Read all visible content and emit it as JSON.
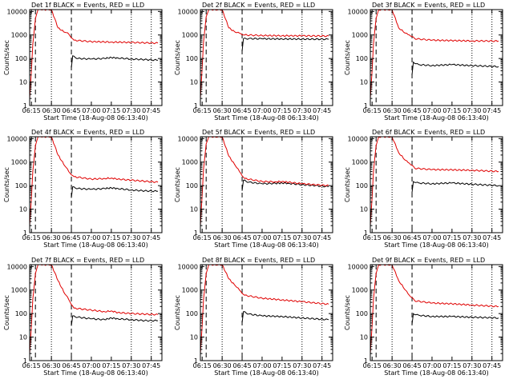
{
  "panel_titles": [
    "Det 1f BLACK = Events, RED = LLD",
    "Det 2f BLACK = Events, RED = LLD",
    "Det 3f BLACK = Events, RED = LLD",
    "Det 4f BLACK = Events, RED = LLD",
    "Det 5f BLACK = Events, RED = LLD",
    "Det 6f BLACK = Events, RED = LLD",
    "Det 7f BLACK = Events, RED = LLD",
    "Det 8f BLACK = Events, RED = LLD",
    "Det 9f BLACK = Events, RED = LLD"
  ],
  "xlabel": "Start Time (18-Aug-08 06:13:40)",
  "ylabel": "Counts/sec",
  "colors": {
    "events": "#000000",
    "lld": "#e00000",
    "axis": "#000000"
  },
  "chart_data": [
    {
      "type": "line",
      "title": "Det 1f BLACK = Events, RED = LLD",
      "xlabel": "Start Time (18-Aug-08 06:13:40)",
      "ylabel": "Counts/sec",
      "x_ticks": [
        "06:15",
        "06:30",
        "06:45",
        "07:00",
        "07:15",
        "07:30",
        "07:45"
      ],
      "y_ticks": [
        "1",
        "10",
        "100",
        "1000",
        "10000"
      ],
      "xlim": [
        "06:13:40",
        "07:53:00"
      ],
      "ylim": [
        1,
        12000
      ],
      "y_scale": "log",
      "dotted_lines": [
        "06:30",
        "07:30",
        "07:45"
      ],
      "dashed_lines": [
        "06:18",
        "06:45"
      ],
      "series": [
        {
          "name": "BLACK = Events",
          "color": "#000000",
          "x": [
            "06:45",
            "06:46",
            "06:50",
            "07:00",
            "07:10",
            "07:15",
            "07:20",
            "07:30",
            "07:40",
            "07:50"
          ],
          "y": [
            40,
            130,
            100,
            95,
            100,
            110,
            105,
            95,
            90,
            85
          ]
        },
        {
          "name": "RED = LLD",
          "color": "#e00000",
          "x": [
            "06:13:40",
            "06:15",
            "06:16",
            "06:18",
            "06:20",
            "06:22",
            "06:30",
            "06:35",
            "06:40",
            "06:43",
            "06:47",
            "07:00",
            "07:15",
            "07:30",
            "07:50"
          ],
          "y": [
            2,
            30,
            400,
            5000,
            12000,
            12000,
            12000,
            2000,
            1300,
            1100,
            600,
            520,
            500,
            480,
            450
          ]
        }
      ]
    },
    {
      "type": "line",
      "title": "Det 2f BLACK = Events, RED = LLD",
      "xlabel": "Start Time (18-Aug-08 06:13:40)",
      "ylabel": "Counts/sec",
      "x_ticks": [
        "06:15",
        "06:30",
        "06:45",
        "07:00",
        "07:15",
        "07:30",
        "07:45"
      ],
      "y_ticks": [
        "1",
        "10",
        "100",
        "1000",
        "10000"
      ],
      "xlim": [
        "06:13:40",
        "07:53:00"
      ],
      "ylim": [
        1,
        12000
      ],
      "y_scale": "log",
      "dotted_lines": [
        "06:30",
        "07:30",
        "07:45"
      ],
      "dashed_lines": [
        "06:18",
        "06:45"
      ],
      "series": [
        {
          "name": "BLACK = Events",
          "color": "#000000",
          "x": [
            "06:45",
            "06:46",
            "06:50",
            "07:00",
            "07:15",
            "07:30",
            "07:50"
          ],
          "y": [
            200,
            700,
            700,
            690,
            680,
            670,
            660
          ]
        },
        {
          "name": "RED = LLD",
          "color": "#e00000",
          "x": [
            "06:13:40",
            "06:15",
            "06:16",
            "06:18",
            "06:20",
            "06:22",
            "06:30",
            "06:35",
            "06:40",
            "06:43",
            "06:47",
            "07:00",
            "07:15",
            "07:30",
            "07:50"
          ],
          "y": [
            2,
            40,
            500,
            6000,
            12000,
            12000,
            12000,
            2000,
            1300,
            1200,
            1000,
            950,
            930,
            920,
            900
          ]
        }
      ]
    },
    {
      "type": "line",
      "title": "Det 3f BLACK = Events, RED = LLD",
      "xlabel": "Start Time (18-Aug-08 06:13:40)",
      "ylabel": "Counts/sec",
      "x_ticks": [
        "06:15",
        "06:30",
        "06:45",
        "07:00",
        "07:15",
        "07:30",
        "07:45"
      ],
      "y_ticks": [
        "1",
        "10",
        "100",
        "1000",
        "10000"
      ],
      "xlim": [
        "06:13:40",
        "07:53:00"
      ],
      "ylim": [
        1,
        12000
      ],
      "y_scale": "log",
      "dotted_lines": [
        "06:30",
        "07:30",
        "07:45"
      ],
      "dashed_lines": [
        "06:18",
        "06:45"
      ],
      "series": [
        {
          "name": "BLACK = Events",
          "color": "#000000",
          "x": [
            "06:45",
            "06:46",
            "06:50",
            "07:00",
            "07:15",
            "07:30",
            "07:50"
          ],
          "y": [
            20,
            70,
            55,
            50,
            55,
            50,
            45
          ]
        },
        {
          "name": "RED = LLD",
          "color": "#e00000",
          "x": [
            "06:13:40",
            "06:15",
            "06:16",
            "06:18",
            "06:20",
            "06:22",
            "06:30",
            "06:35",
            "06:40",
            "06:43",
            "06:47",
            "07:00",
            "07:15",
            "07:30",
            "07:50"
          ],
          "y": [
            2,
            30,
            400,
            5000,
            12000,
            12000,
            12000,
            2000,
            1200,
            1000,
            700,
            600,
            580,
            560,
            550
          ]
        }
      ]
    },
    {
      "type": "line",
      "title": "Det 4f BLACK = Events, RED = LLD",
      "xlabel": "Start Time (18-Aug-08 06:13:40)",
      "ylabel": "Counts/sec",
      "x_ticks": [
        "06:15",
        "06:30",
        "06:45",
        "07:00",
        "07:15",
        "07:30",
        "07:45"
      ],
      "y_ticks": [
        "1",
        "10",
        "100",
        "1000",
        "10000"
      ],
      "xlim": [
        "06:13:40",
        "07:53:00"
      ],
      "ylim": [
        1,
        12000
      ],
      "y_scale": "log",
      "dotted_lines": [
        "06:30",
        "07:30",
        "07:45"
      ],
      "dashed_lines": [
        "06:18",
        "06:45"
      ],
      "series": [
        {
          "name": "BLACK = Events",
          "color": "#000000",
          "x": [
            "06:45",
            "06:46",
            "06:50",
            "07:00",
            "07:10",
            "07:15",
            "07:20",
            "07:30",
            "07:40",
            "07:50"
          ],
          "y": [
            30,
            90,
            75,
            70,
            75,
            80,
            75,
            65,
            60,
            58
          ]
        },
        {
          "name": "RED = LLD",
          "color": "#e00000",
          "x": [
            "06:13:40",
            "06:15",
            "06:16",
            "06:18",
            "06:20",
            "06:22",
            "06:30",
            "06:35",
            "06:40",
            "06:43",
            "06:47",
            "07:00",
            "07:10",
            "07:15",
            "07:20",
            "07:30",
            "07:50"
          ],
          "y": [
            2,
            30,
            400,
            5000,
            12000,
            12000,
            12000,
            2000,
            700,
            400,
            240,
            190,
            200,
            210,
            190,
            170,
            140
          ]
        }
      ]
    },
    {
      "type": "line",
      "title": "Det 5f BLACK = Events, RED = LLD",
      "xlabel": "Start Time (18-Aug-08 06:13:40)",
      "ylabel": "Counts/sec",
      "x_ticks": [
        "06:15",
        "06:30",
        "06:45",
        "07:00",
        "07:15",
        "07:30",
        "07:45"
      ],
      "y_ticks": [
        "1",
        "10",
        "100",
        "1000",
        "10000"
      ],
      "xlim": [
        "06:13:40",
        "07:53:00"
      ],
      "ylim": [
        1,
        12000
      ],
      "y_scale": "log",
      "dotted_lines": [
        "06:30",
        "07:30",
        "07:45"
      ],
      "dashed_lines": [
        "06:18",
        "06:45"
      ],
      "series": [
        {
          "name": "BLACK = Events",
          "color": "#000000",
          "x": [
            "06:45",
            "06:46",
            "06:50",
            "07:00",
            "07:10",
            "07:15",
            "07:20",
            "07:30",
            "07:40",
            "07:50"
          ],
          "y": [
            60,
            170,
            140,
            120,
            125,
            130,
            125,
            110,
            100,
            90
          ]
        },
        {
          "name": "RED = LLD",
          "color": "#e00000",
          "x": [
            "06:13:40",
            "06:15",
            "06:16",
            "06:18",
            "06:20",
            "06:22",
            "06:30",
            "06:35",
            "06:40",
            "06:43",
            "06:47",
            "07:00",
            "07:10",
            "07:15",
            "07:20",
            "07:30",
            "07:50"
          ],
          "y": [
            2,
            40,
            500,
            6000,
            12000,
            12000,
            12000,
            1800,
            700,
            400,
            200,
            150,
            145,
            150,
            140,
            120,
            100
          ]
        }
      ]
    },
    {
      "type": "line",
      "title": "Det 6f BLACK = Events, RED = LLD",
      "xlabel": "Start Time (18-Aug-08 06:13:40)",
      "ylabel": "Counts/sec",
      "x_ticks": [
        "06:15",
        "06:30",
        "06:45",
        "07:00",
        "07:15",
        "07:30",
        "07:45"
      ],
      "y_ticks": [
        "1",
        "10",
        "100",
        "1000",
        "10000"
      ],
      "xlim": [
        "06:13:40",
        "07:53:00"
      ],
      "ylim": [
        1,
        12000
      ],
      "y_scale": "log",
      "dotted_lines": [
        "06:30",
        "07:30",
        "07:45"
      ],
      "dashed_lines": [
        "06:18",
        "06:45"
      ],
      "series": [
        {
          "name": "BLACK = Events",
          "color": "#000000",
          "x": [
            "06:45",
            "06:46",
            "06:50",
            "07:00",
            "07:15",
            "07:30",
            "07:50"
          ],
          "y": [
            50,
            150,
            130,
            120,
            130,
            115,
            100
          ]
        },
        {
          "name": "RED = LLD",
          "color": "#e00000",
          "x": [
            "06:13:40",
            "06:15",
            "06:16",
            "06:18",
            "06:20",
            "06:22",
            "06:30",
            "06:35",
            "06:40",
            "06:43",
            "06:47",
            "07:00",
            "07:15",
            "07:30",
            "07:50"
          ],
          "y": [
            2,
            30,
            400,
            5000,
            12000,
            12000,
            12000,
            2500,
            1200,
            900,
            550,
            480,
            470,
            450,
            400
          ]
        }
      ]
    },
    {
      "type": "line",
      "title": "Det 7f BLACK = Events, RED = LLD",
      "xlabel": "Start Time (18-Aug-08 06:13:40)",
      "ylabel": "Counts/sec",
      "x_ticks": [
        "06:15",
        "06:30",
        "06:45",
        "07:00",
        "07:15",
        "07:30",
        "07:45"
      ],
      "y_ticks": [
        "1",
        "10",
        "100",
        "1000",
        "10000"
      ],
      "xlim": [
        "06:13:40",
        "07:53:00"
      ],
      "ylim": [
        1,
        12000
      ],
      "y_scale": "log",
      "dotted_lines": [
        "06:30",
        "07:30",
        "07:45"
      ],
      "dashed_lines": [
        "06:18",
        "06:45"
      ],
      "series": [
        {
          "name": "BLACK = Events",
          "color": "#000000",
          "x": [
            "06:45",
            "06:46",
            "06:50",
            "07:00",
            "07:10",
            "07:15",
            "07:20",
            "07:30",
            "07:40",
            "07:50"
          ],
          "y": [
            30,
            80,
            70,
            60,
            55,
            65,
            60,
            55,
            50,
            50
          ]
        },
        {
          "name": "RED = LLD",
          "color": "#e00000",
          "x": [
            "06:13:40",
            "06:15",
            "06:16",
            "06:18",
            "06:20",
            "06:22",
            "06:30",
            "06:35",
            "06:40",
            "06:43",
            "06:47",
            "07:00",
            "07:10",
            "07:15",
            "07:20",
            "07:30",
            "07:50"
          ],
          "y": [
            2,
            30,
            400,
            5000,
            12000,
            12000,
            12000,
            2500,
            700,
            400,
            170,
            140,
            120,
            130,
            110,
            100,
            90
          ]
        }
      ]
    },
    {
      "type": "line",
      "title": "Det 8f BLACK = Events, RED = LLD",
      "xlabel": "Start Time (18-Aug-08 06:13:40)",
      "ylabel": "Counts/sec",
      "x_ticks": [
        "06:15",
        "06:30",
        "06:45",
        "07:00",
        "07:15",
        "07:30",
        "07:45"
      ],
      "y_ticks": [
        "1",
        "10",
        "100",
        "1000",
        "10000"
      ],
      "xlim": [
        "06:13:40",
        "07:53:00"
      ],
      "ylim": [
        1,
        12000
      ],
      "y_scale": "log",
      "dotted_lines": [
        "06:30",
        "07:30",
        "07:45"
      ],
      "dashed_lines": [
        "06:18",
        "06:45"
      ],
      "series": [
        {
          "name": "BLACK = Events",
          "color": "#000000",
          "x": [
            "06:45",
            "06:46",
            "06:50",
            "07:00",
            "07:15",
            "07:30",
            "07:50"
          ],
          "y": [
            40,
            120,
            95,
            80,
            75,
            65,
            55
          ]
        },
        {
          "name": "RED = LLD",
          "color": "#e00000",
          "x": [
            "06:13:40",
            "06:15",
            "06:16",
            "06:18",
            "06:20",
            "06:22",
            "06:30",
            "06:35",
            "06:40",
            "06:43",
            "06:47",
            "07:00",
            "07:15",
            "07:30",
            "07:50"
          ],
          "y": [
            2,
            30,
            400,
            5000,
            12000,
            12000,
            12000,
            3000,
            1500,
            1000,
            600,
            450,
            380,
            320,
            250
          ]
        }
      ]
    },
    {
      "type": "line",
      "title": "Det 9f BLACK = Events, RED = LLD",
      "xlabel": "Start Time (18-Aug-08 06:13:40)",
      "ylabel": "Counts/sec",
      "x_ticks": [
        "06:15",
        "06:30",
        "06:45",
        "07:00",
        "07:15",
        "07:30",
        "07:45"
      ],
      "y_ticks": [
        "1",
        "10",
        "100",
        "1000",
        "10000"
      ],
      "xlim": [
        "06:13:40",
        "07:53:00"
      ],
      "ylim": [
        1,
        12000
      ],
      "y_scale": "log",
      "dotted_lines": [
        "06:30",
        "07:30",
        "07:45"
      ],
      "dashed_lines": [
        "06:18",
        "06:45"
      ],
      "series": [
        {
          "name": "BLACK = Events",
          "color": "#000000",
          "x": [
            "06:45",
            "06:46",
            "06:50",
            "07:00",
            "07:15",
            "07:30",
            "07:50"
          ],
          "y": [
            35,
            100,
            85,
            75,
            75,
            70,
            65
          ]
        },
        {
          "name": "RED = LLD",
          "color": "#e00000",
          "x": [
            "06:13:40",
            "06:15",
            "06:16",
            "06:18",
            "06:20",
            "06:22",
            "06:30",
            "06:35",
            "06:40",
            "06:43",
            "06:47",
            "07:00",
            "07:15",
            "07:30",
            "07:50"
          ],
          "y": [
            2,
            30,
            400,
            5000,
            12000,
            12000,
            12000,
            2500,
            1000,
            600,
            350,
            280,
            260,
            230,
            200
          ]
        }
      ]
    }
  ]
}
